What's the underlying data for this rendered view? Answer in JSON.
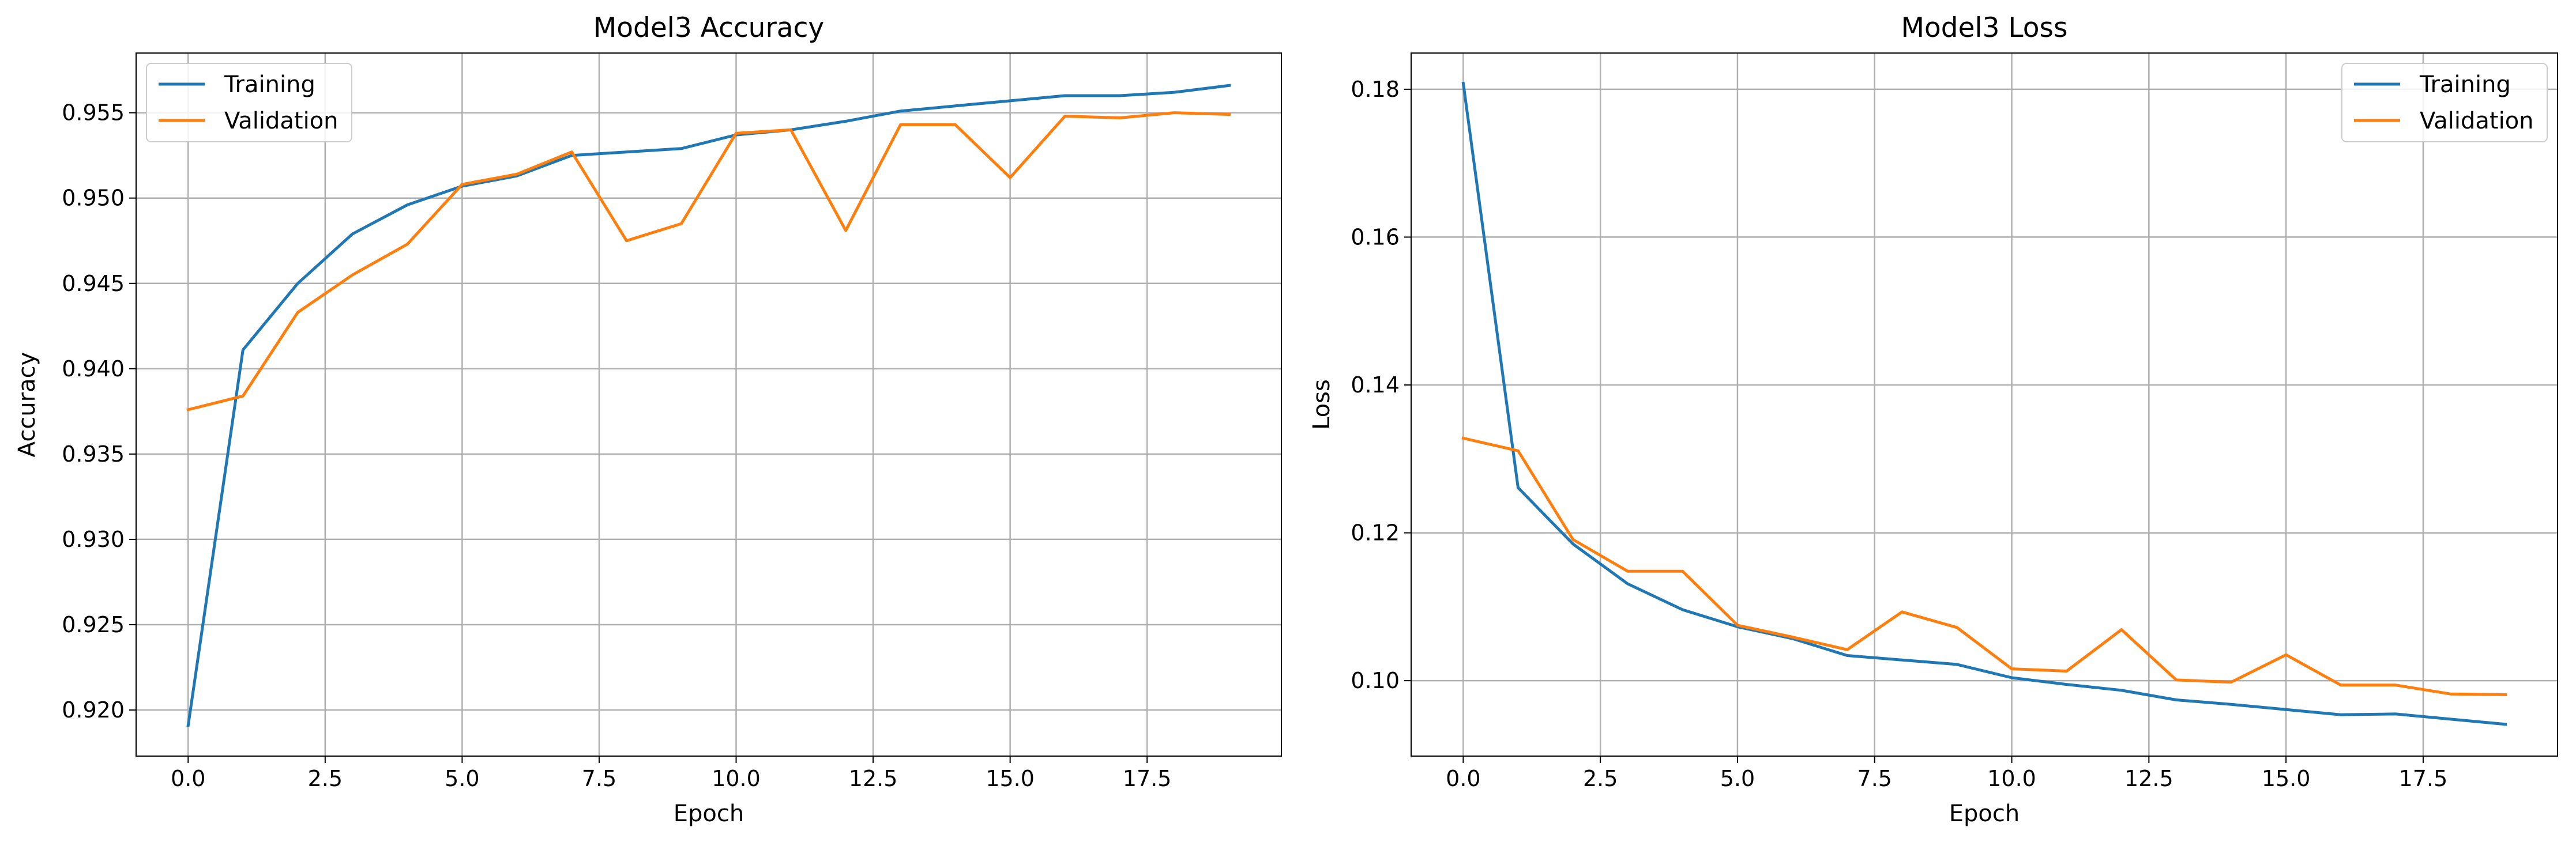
{
  "colors": {
    "training": "#1f77b4",
    "validation": "#ff7f0e",
    "grid": "#b0b0b0",
    "axes": "#000000"
  },
  "chart_data": [
    {
      "type": "line",
      "title": "Model3 Accuracy",
      "xlabel": "Epoch",
      "ylabel": "Accuracy",
      "xlim": [
        -0.95,
        19.95
      ],
      "ylim": [
        0.9173,
        0.9585
      ],
      "grid": true,
      "legend_position": "upper-left",
      "xticks": [
        0.0,
        2.5,
        5.0,
        7.5,
        10.0,
        12.5,
        15.0,
        17.5
      ],
      "xtick_labels": [
        "0.0",
        "2.5",
        "5.0",
        "7.5",
        "10.0",
        "12.5",
        "15.0",
        "17.5"
      ],
      "yticks": [
        0.92,
        0.925,
        0.93,
        0.935,
        0.94,
        0.945,
        0.95,
        0.955
      ],
      "ytick_labels": [
        "0.920",
        "0.925",
        "0.930",
        "0.935",
        "0.940",
        "0.945",
        "0.950",
        "0.955"
      ],
      "x": [
        0,
        1,
        2,
        3,
        4,
        5,
        6,
        7,
        8,
        9,
        10,
        11,
        12,
        13,
        14,
        15,
        16,
        17,
        18,
        19
      ],
      "series": [
        {
          "name": "Training",
          "color_key": "training",
          "values": [
            0.9191,
            0.9411,
            0.945,
            0.9479,
            0.9496,
            0.9507,
            0.9513,
            0.9525,
            0.9527,
            0.9529,
            0.9537,
            0.954,
            0.9545,
            0.9551,
            0.9554,
            0.9557,
            0.956,
            0.956,
            0.9562,
            0.9566
          ]
        },
        {
          "name": "Validation",
          "color_key": "validation",
          "values": [
            0.9376,
            0.9384,
            0.9433,
            0.9455,
            0.9473,
            0.9508,
            0.9514,
            0.9527,
            0.9475,
            0.9485,
            0.9538,
            0.954,
            0.9481,
            0.9543,
            0.9543,
            0.9512,
            0.9548,
            0.9547,
            0.955,
            0.9549
          ]
        }
      ]
    },
    {
      "type": "line",
      "title": "Model3 Loss",
      "xlabel": "Epoch",
      "ylabel": "Loss",
      "xlim": [
        -0.95,
        19.95
      ],
      "ylim": [
        0.0898,
        0.1849
      ],
      "grid": true,
      "legend_position": "upper-right",
      "xticks": [
        0.0,
        2.5,
        5.0,
        7.5,
        10.0,
        12.5,
        15.0,
        17.5
      ],
      "xtick_labels": [
        "0.0",
        "2.5",
        "5.0",
        "7.5",
        "10.0",
        "12.5",
        "15.0",
        "17.5"
      ],
      "yticks": [
        0.1,
        0.12,
        0.14,
        0.16,
        0.18
      ],
      "ytick_labels": [
        "0.10",
        "0.12",
        "0.14",
        "0.16",
        "0.18"
      ],
      "x": [
        0,
        1,
        2,
        3,
        4,
        5,
        6,
        7,
        8,
        9,
        10,
        11,
        12,
        13,
        14,
        15,
        16,
        17,
        18,
        19
      ],
      "series": [
        {
          "name": "Training",
          "color_key": "training",
          "values": [
            0.1808,
            0.1261,
            0.1185,
            0.1131,
            0.1096,
            0.1073,
            0.1057,
            0.1034,
            0.1028,
            0.1022,
            0.1004,
            0.0995,
            0.0987,
            0.0974,
            0.0968,
            0.0961,
            0.0954,
            0.0955,
            0.0948,
            0.0941
          ]
        },
        {
          "name": "Validation",
          "color_key": "validation",
          "values": [
            0.1328,
            0.1311,
            0.1191,
            0.1148,
            0.1148,
            0.1075,
            0.1059,
            0.1042,
            0.1093,
            0.1072,
            0.1016,
            0.1013,
            0.1069,
            0.1001,
            0.0998,
            0.1035,
            0.0994,
            0.0994,
            0.0982,
            0.0981
          ]
        }
      ]
    }
  ]
}
